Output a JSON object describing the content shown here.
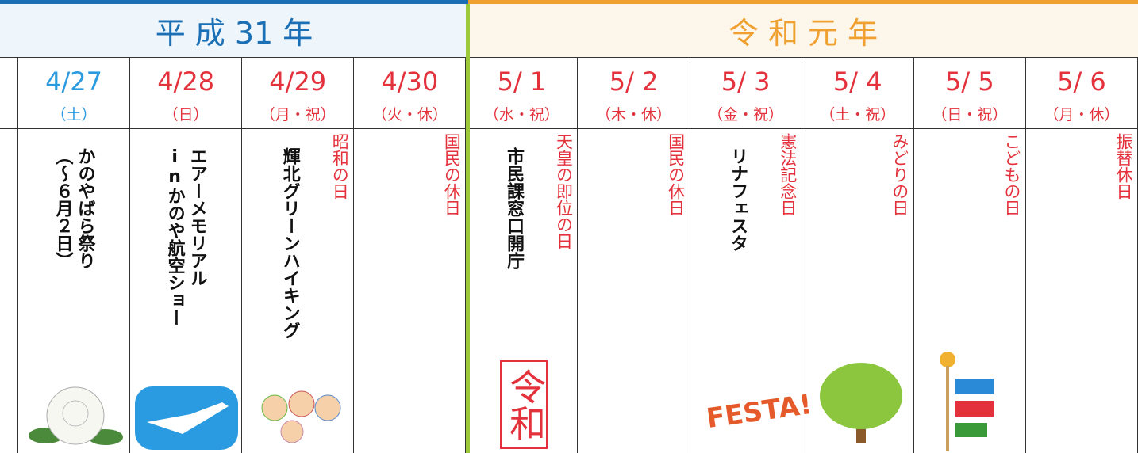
{
  "eras": [
    {
      "label": "平 成 31 年"
    },
    {
      "label": "令 和 元 年"
    }
  ],
  "days": [
    {
      "date": "4/27",
      "weekday": "（土）",
      "events": [
        "かのやばら祭り",
        "（～６月２日）"
      ]
    },
    {
      "date": "4/28",
      "weekday": "（日）",
      "events": [
        "エアーメモリアル",
        "inかのや航空ショー"
      ]
    },
    {
      "date": "4/29",
      "weekday": "（月・祝）",
      "holiday": "昭和の日",
      "events": [
        "輝北グリーンハイキング"
      ]
    },
    {
      "date": "4/30",
      "weekday": "（火・休）",
      "holiday": "国民の休日"
    },
    {
      "date": "5/ 1",
      "weekday": "（水・祝）",
      "holiday": "天皇の即位の日",
      "events": [
        "市民課窓口開庁"
      ],
      "stamp": "令和"
    },
    {
      "date": "5/ 2",
      "weekday": "（木・休）",
      "holiday": "国民の休日"
    },
    {
      "date": "5/ 3",
      "weekday": "（金・祝）",
      "holiday": "憲法記念日",
      "events": [
        "リナフェスタ"
      ],
      "badge": "FESTA!"
    },
    {
      "date": "5/ 4",
      "weekday": "（土・祝）",
      "holiday": "みどりの日"
    },
    {
      "date": "5/ 5",
      "weekday": "（日・祝）",
      "holiday": "こどもの日"
    },
    {
      "date": "5/ 6",
      "weekday": "（月・休）",
      "holiday": "振替休日"
    }
  ]
}
